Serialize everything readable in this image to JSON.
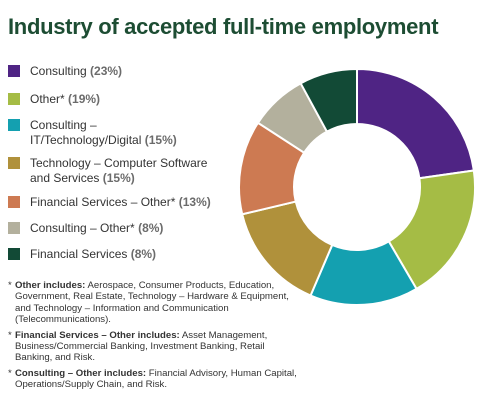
{
  "chart_data": {
    "type": "pie",
    "title": "Industry of accepted full-time employment",
    "donut": true,
    "categories": [
      "Consulting",
      "Other*",
      "Consulting – IT/Technology/Digital",
      "Technology – Computer Software and Services",
      "Financial Services – Other*",
      "Consulting – Other*",
      "Financial Services"
    ],
    "values": [
      23,
      19,
      15,
      15,
      13,
      8,
      8
    ],
    "pct_labels": [
      "(23%)",
      "(19%)",
      "(15%)",
      "(15%)",
      "(13%)",
      "(8%)",
      "(8%)"
    ],
    "colors": [
      "#4f2484",
      "#a5bc45",
      "#14a0b0",
      "#b0913b",
      "#cd7a52",
      "#b3b09d",
      "#124a36"
    ],
    "legend_position": "left"
  },
  "legend": [
    {
      "line1": "Consulting",
      "line2": ""
    },
    {
      "line1": "Other*",
      "line2": ""
    },
    {
      "line1": "Consulting –",
      "line2": "IT/Technology/Digital"
    },
    {
      "line1": "Technology – Computer Software",
      "line2": "and Services"
    },
    {
      "line1": "Financial Services – Other*",
      "line2": ""
    },
    {
      "line1": "Consulting – Other*",
      "line2": ""
    },
    {
      "line1": "Financial Services",
      "line2": ""
    }
  ],
  "notes": [
    {
      "mark": "*",
      "label": "Other includes:",
      "text": "Aerospace, Consumer Products, Education, Government, Real Estate, Technology – Hardware & Equipment, and Technology – Information and Communication (Telecommunications)."
    },
    {
      "mark": "*",
      "label": "Financial Services – Other includes:",
      "text": "Asset Management, Business/Commercial Banking, Investment Banking, Retail Banking, and Risk."
    },
    {
      "mark": "*",
      "label": "Consulting – Other includes:",
      "text": "Financial Advisory, Human Capital, Operations/Supply Chain, and Risk."
    }
  ]
}
